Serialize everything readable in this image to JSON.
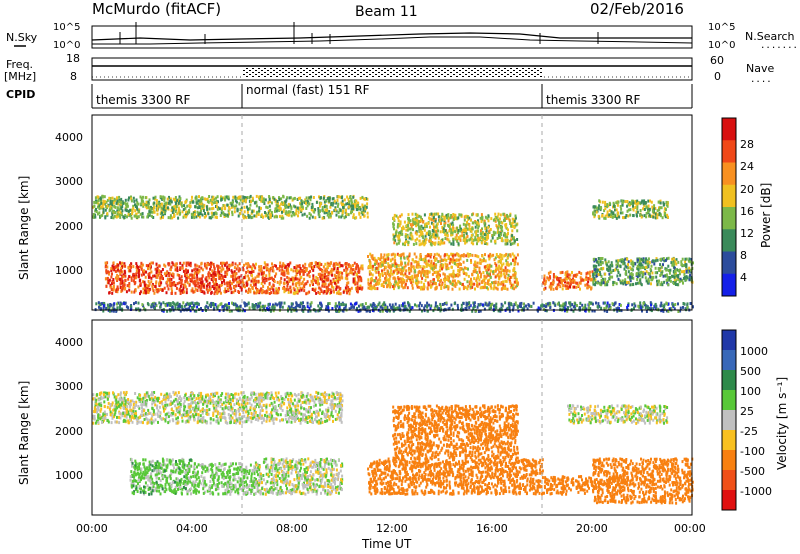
{
  "header": {
    "station": "McMurdo (fitACF)",
    "beam": "Beam 11",
    "date": "02/Feb/2016"
  },
  "left_labels": {
    "nsky": "N.Sky",
    "freq_line1": "Freq.",
    "freq_line2": "[MHz]",
    "cpid": "CPID"
  },
  "right_labels": {
    "nsearch": "N.Search",
    "nsearch_dots": ".......",
    "nave": "Nave",
    "nave_dots": "...."
  },
  "noise_panel": {
    "left_ticks": [
      "10^5",
      "10^0"
    ],
    "right_ticks": [
      "10^5",
      "10^0"
    ]
  },
  "freq_panel": {
    "left_ticks": [
      "18",
      "8"
    ],
    "right_ticks": [
      "60",
      "0"
    ]
  },
  "cpid_segments": [
    {
      "label": "themis 3300 RF",
      "start_hour": 0,
      "end_hour": 6
    },
    {
      "label": "normal (fast) 151 RF",
      "start_hour": 6,
      "end_hour": 18
    },
    {
      "label": "themis 3300 RF",
      "start_hour": 18,
      "end_hour": 24
    }
  ],
  "x_axis": {
    "label": "Time UT",
    "ticks": [
      "00:00",
      "04:00",
      "08:00",
      "12:00",
      "16:00",
      "20:00",
      "00:00"
    ],
    "tick_hours": [
      0,
      4,
      8,
      12,
      16,
      20,
      24
    ]
  },
  "panels": [
    {
      "name": "power",
      "ylabel": "Slant Range [km]",
      "ylim": [
        200,
        4600
      ],
      "yticks": [
        1000,
        2000,
        3000,
        4000
      ],
      "colorbar_label": "Power [dB]",
      "colorbar_ticks": [
        "28",
        "24",
        "20",
        "16",
        "12",
        "8",
        "4"
      ],
      "colors": [
        "#d81010",
        "#f04818",
        "#f89020",
        "#f0c020",
        "#7cb848",
        "#3a8a5a",
        "#2c4c9c",
        "#1420e8"
      ]
    },
    {
      "name": "velocity",
      "ylabel": "Slant Range [km]",
      "ylim": [
        200,
        4600
      ],
      "yticks": [
        1000,
        2000,
        3000,
        4000
      ],
      "colorbar_label": "Velocity [m s⁻¹]",
      "colorbar_ticks": [
        "1000",
        "500",
        "100",
        "25",
        "-25",
        "-100",
        "-500",
        "-1000"
      ],
      "colors": [
        "#2038a8",
        "#3868b8",
        "#2e8a4a",
        "#58c838",
        "#c0c0c0",
        "#f8c020",
        "#f88010",
        "#f05018",
        "#e01010"
      ]
    }
  ],
  "chart_data": [
    {
      "type": "heatmap",
      "title": "Power [dB]",
      "xlabel": "Time UT",
      "ylabel": "Slant Range [km]",
      "xlim": [
        0,
        24
      ],
      "ylim": [
        200,
        4600
      ],
      "value_range": [
        0,
        30
      ],
      "scatter_regions": [
        {
          "t": [
            0.5,
            6
          ],
          "range": [
            600,
            1300
          ],
          "value": 26
        },
        {
          "t": [
            6,
            10.8
          ],
          "range": [
            600,
            1300
          ],
          "value": 24
        },
        {
          "t": [
            0,
            11
          ],
          "range": [
            2300,
            2800
          ],
          "value": 14
        },
        {
          "t": [
            11,
            17
          ],
          "range": [
            700,
            1500
          ],
          "value": 20
        },
        {
          "t": [
            12,
            17
          ],
          "range": [
            1700,
            2400
          ],
          "value": 16
        },
        {
          "t": [
            18,
            20
          ],
          "range": [
            700,
            1100
          ],
          "value": 24
        },
        {
          "t": [
            20,
            24
          ],
          "range": [
            800,
            1400
          ],
          "value": 12
        },
        {
          "t": [
            20,
            23
          ],
          "range": [
            2300,
            2700
          ],
          "value": 14
        },
        {
          "t": [
            0,
            24
          ],
          "range": [
            200,
            400
          ],
          "value": 8
        }
      ]
    },
    {
      "type": "heatmap",
      "title": "Velocity [m s⁻¹]",
      "xlabel": "Time UT",
      "ylabel": "Slant Range [km]",
      "xlim": [
        0,
        24
      ],
      "ylim": [
        200,
        4600
      ],
      "value_range": [
        -1000,
        1000
      ],
      "scatter_regions": [
        {
          "t": [
            1.5,
            4
          ],
          "range": [
            700,
            1500
          ],
          "value": 60
        },
        {
          "t": [
            4,
            6.5
          ],
          "range": [
            700,
            1400
          ],
          "value": 40
        },
        {
          "t": [
            6.5,
            10
          ],
          "range": [
            700,
            1500
          ],
          "value": 10
        },
        {
          "t": [
            0,
            10
          ],
          "range": [
            2300,
            3000
          ],
          "value": 0
        },
        {
          "t": [
            11,
            18
          ],
          "range": [
            700,
            1500
          ],
          "value": -400
        },
        {
          "t": [
            12,
            17
          ],
          "range": [
            1500,
            2700
          ],
          "value": -400
        },
        {
          "t": [
            18,
            20
          ],
          "range": [
            700,
            1100
          ],
          "value": -400
        },
        {
          "t": [
            20,
            24
          ],
          "range": [
            500,
            1500
          ],
          "value": -300
        },
        {
          "t": [
            19,
            23
          ],
          "range": [
            2300,
            2700
          ],
          "value": 0
        }
      ]
    }
  ]
}
